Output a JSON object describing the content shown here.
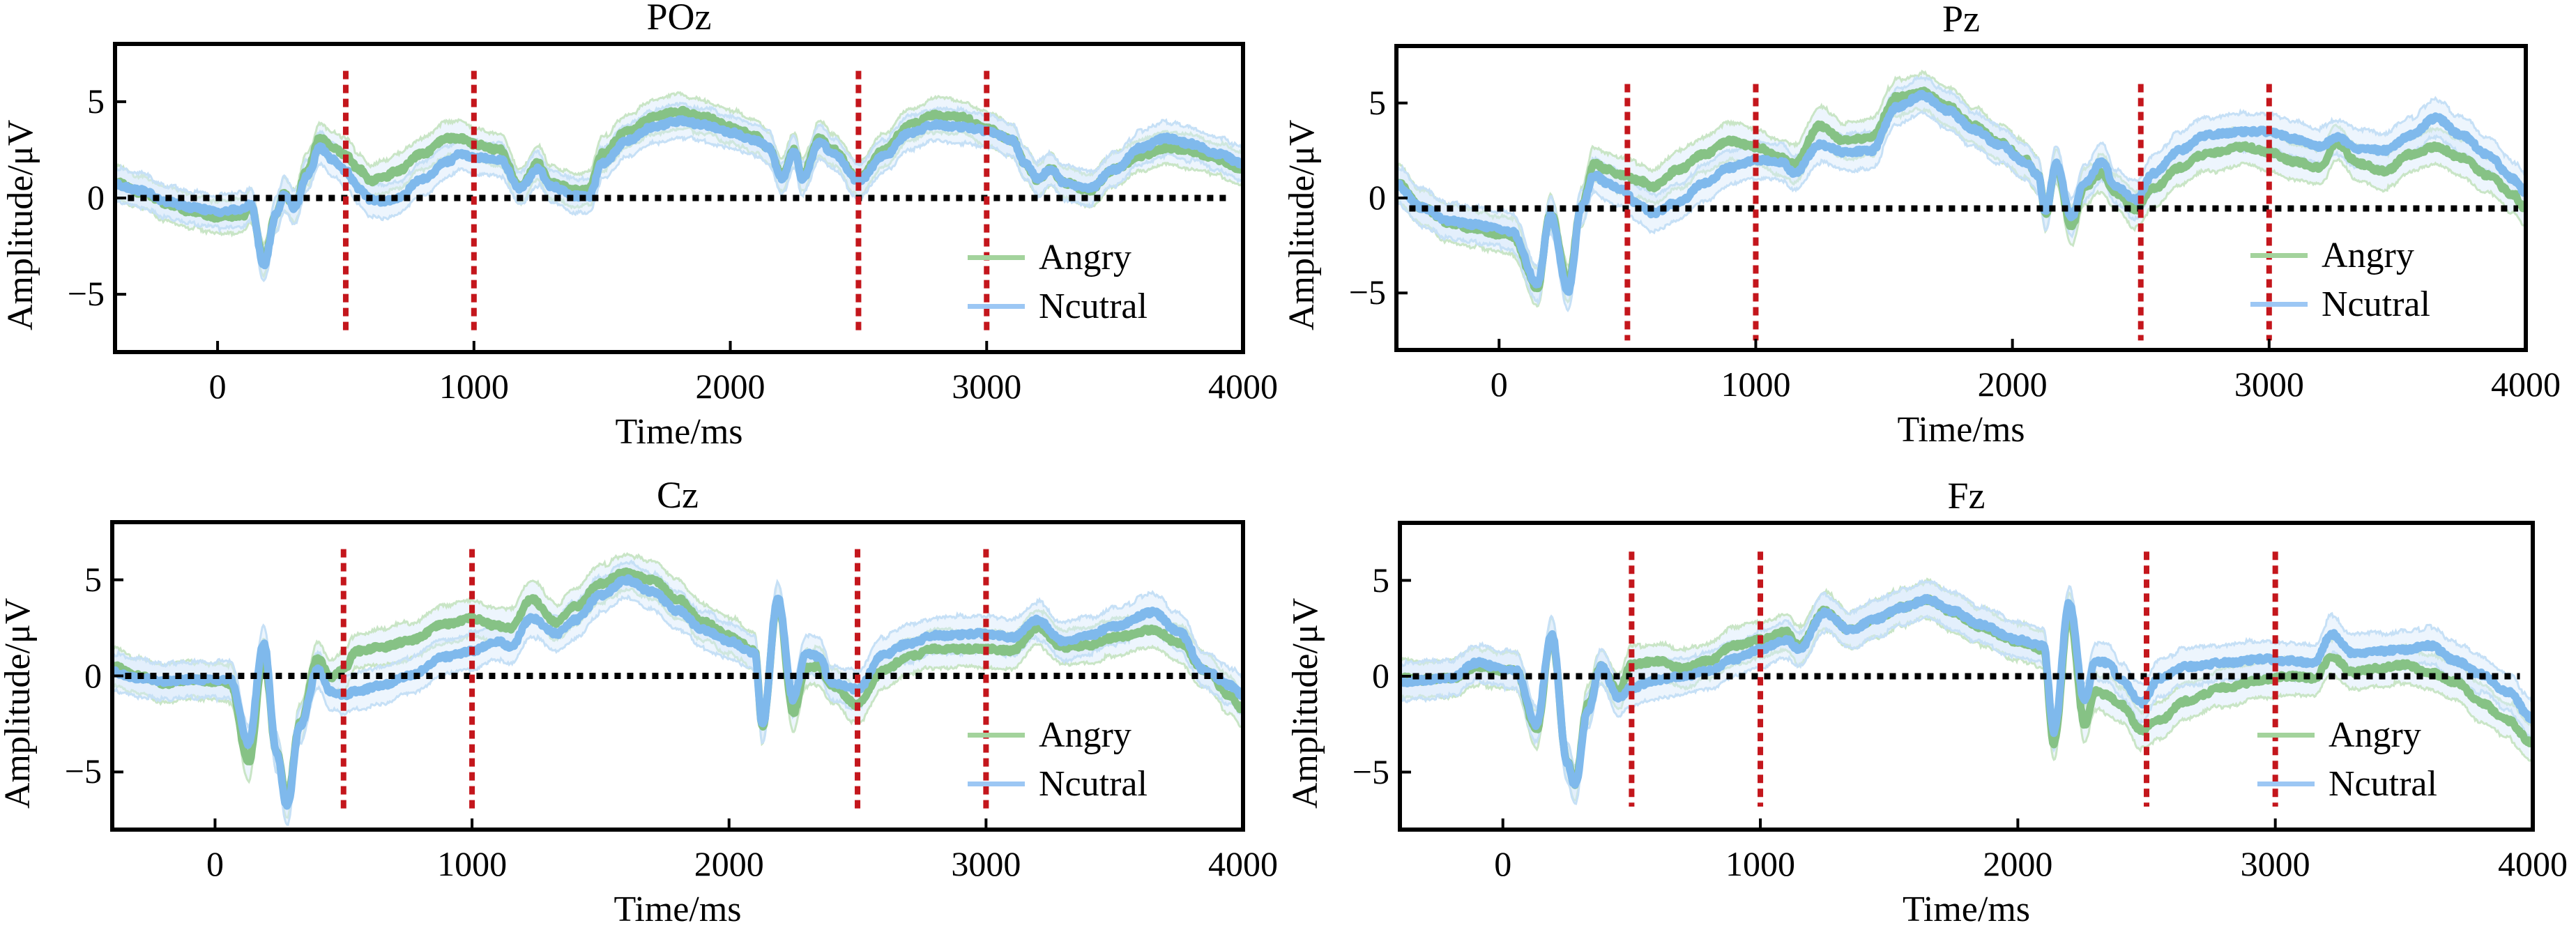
{
  "chart_data": [
    {
      "type": "line",
      "title": "POz",
      "xlabel": "Time/ms",
      "ylabel": "Amplitude/μV",
      "xlim": [
        -400,
        4000
      ],
      "ylim": [
        -8,
        8
      ],
      "xticks": [
        0,
        1000,
        2000,
        3000,
        4000
      ],
      "xtick_labels": [
        "0",
        "1000",
        "2000",
        "3000",
        "4000"
      ],
      "yticks": [
        -5,
        0,
        5
      ],
      "ytick_labels": [
        "−5",
        "0",
        "5"
      ],
      "baseline": 0,
      "baseline_range": [
        -350,
        3940
      ],
      "markers_ms": [
        500,
        1000,
        2500,
        3000
      ],
      "marker_range": [
        -6.9,
        6.6
      ],
      "legend": {
        "position": "bottom-right",
        "entries": [
          "Angry",
          "Ncutral"
        ]
      },
      "x": [
        -400,
        -300,
        -200,
        -100,
        0,
        100,
        130,
        180,
        230,
        260,
        300,
        350,
        400,
        450,
        500,
        550,
        600,
        650,
        700,
        800,
        900,
        950,
        1000,
        1100,
        1180,
        1250,
        1300,
        1400,
        1450,
        1500,
        1600,
        1700,
        1800,
        1900,
        2000,
        2100,
        2150,
        2200,
        2250,
        2280,
        2350,
        2400,
        2500,
        2600,
        2700,
        2800,
        2900,
        3000,
        3100,
        3150,
        3200,
        3250,
        3300,
        3400,
        3500,
        3600,
        3700,
        3800,
        3900,
        4000
      ],
      "series": [
        {
          "name": "Angry",
          "color": "#86c285",
          "band": 0.9,
          "values": [
            0.8,
            0.3,
            -0.3,
            -0.7,
            -1.0,
            -0.9,
            -0.4,
            -3.2,
            -0.8,
            0.2,
            -0.4,
            1.5,
            3.1,
            2.6,
            2.2,
            1.5,
            0.9,
            1.1,
            1.4,
            2.3,
            3.1,
            3.1,
            2.8,
            2.5,
            0.6,
            1.8,
            0.8,
            0.4,
            0.5,
            2.3,
            3.5,
            4.2,
            4.5,
            4.2,
            3.7,
            3.2,
            2.6,
            1.2,
            2.5,
            1.2,
            3.1,
            2.5,
            1.0,
            2.5,
            3.8,
            4.3,
            4.2,
            3.6,
            3.0,
            1.8,
            0.9,
            1.5,
            0.8,
            0.4,
            1.5,
            2.2,
            2.6,
            2.4,
            2.0,
            1.5
          ]
        },
        {
          "name": "Ncutral",
          "color": "#7fb9ec",
          "band": 0.9,
          "values": [
            0.7,
            0.4,
            -0.2,
            -0.5,
            -0.7,
            -0.6,
            -0.3,
            -3.5,
            -0.8,
            0.2,
            -0.5,
            1.2,
            2.6,
            2.0,
            1.4,
            0.5,
            -0.1,
            -0.2,
            0.0,
            1.0,
            1.9,
            2.3,
            2.1,
            2.0,
            0.5,
            1.5,
            0.6,
            0.1,
            0.1,
            1.8,
            3.0,
            3.7,
            4.0,
            3.8,
            3.4,
            3.0,
            2.6,
            1.0,
            2.4,
            1.0,
            2.9,
            2.3,
            0.9,
            2.2,
            3.4,
            3.8,
            3.7,
            3.5,
            3.0,
            1.8,
            1.0,
            1.5,
            0.8,
            0.5,
            1.5,
            2.6,
            3.1,
            2.8,
            2.3,
            1.8
          ]
        }
      ]
    },
    {
      "type": "line",
      "title": "Pz",
      "xlabel": "Time/ms",
      "ylabel": "Amplitude/μV",
      "xlim": [
        -400,
        4000
      ],
      "ylim": [
        -8,
        8
      ],
      "xticks": [
        0,
        1000,
        2000,
        3000,
        4000
      ],
      "xtick_labels": [
        "0",
        "1000",
        "2000",
        "3000",
        "4000"
      ],
      "yticks": [
        -5,
        0,
        5
      ],
      "ytick_labels": [
        "−5",
        "0",
        "5"
      ],
      "baseline": -0.55,
      "baseline_range": [
        -350,
        3970
      ],
      "markers_ms": [
        500,
        1000,
        2500,
        3000
      ],
      "marker_range": [
        -7.5,
        6.0
      ],
      "legend": {
        "position": "bottom-right",
        "entries": [
          "Angry",
          "Ncutral"
        ]
      },
      "x": [
        -400,
        -300,
        -200,
        -100,
        0,
        50,
        150,
        200,
        270,
        320,
        370,
        420,
        470,
        550,
        600,
        700,
        800,
        900,
        1000,
        1100,
        1150,
        1250,
        1350,
        1450,
        1550,
        1650,
        1750,
        1850,
        1950,
        2050,
        2100,
        2130,
        2170,
        2230,
        2280,
        2350,
        2400,
        2480,
        2550,
        2650,
        2750,
        2900,
        3000,
        3100,
        3200,
        3260,
        3350,
        3450,
        3550,
        3650,
        3750,
        3850,
        3950,
        4000
      ],
      "series": [
        {
          "name": "Angry",
          "color": "#86c285",
          "band": 1.0,
          "values": [
            0.8,
            -0.5,
            -1.3,
            -1.6,
            -1.9,
            -2.0,
            -4.7,
            -0.8,
            -4.5,
            -0.5,
            1.8,
            1.5,
            1.2,
            0.9,
            0.6,
            1.5,
            2.3,
            3.0,
            2.7,
            2.1,
            1.8,
            3.8,
            3.0,
            3.2,
            5.3,
            5.6,
            4.8,
            3.8,
            2.9,
            2.0,
            1.2,
            -0.8,
            1.7,
            -1.5,
            0.6,
            1.3,
            0.3,
            -0.6,
            0.5,
            1.6,
            2.3,
            2.7,
            2.4,
            1.9,
            1.6,
            2.9,
            1.8,
            1.4,
            2.3,
            2.7,
            2.1,
            1.2,
            0.2,
            -0.6
          ]
        },
        {
          "name": "Ncutral",
          "color": "#7fb9ec",
          "band": 1.0,
          "values": [
            0.7,
            -0.5,
            -1.2,
            -1.4,
            -1.6,
            -1.8,
            -4.5,
            -0.9,
            -4.9,
            -0.5,
            1.2,
            0.8,
            0.5,
            -0.4,
            -0.8,
            -0.2,
            0.8,
            1.6,
            2.0,
            1.9,
            1.3,
            2.8,
            2.4,
            2.5,
            4.8,
            5.4,
            4.6,
            3.6,
            2.8,
            1.9,
            1.2,
            -0.8,
            1.8,
            -1.0,
            0.8,
            1.9,
            0.6,
            -0.1,
            1.3,
            2.5,
            3.3,
            3.5,
            3.5,
            3.1,
            2.7,
            3.2,
            2.6,
            2.5,
            3.3,
            4.2,
            3.3,
            2.3,
            1.0,
            0.3
          ]
        }
      ]
    },
    {
      "type": "line",
      "title": "Cz",
      "xlabel": "Time/ms",
      "ylabel": "Amplitude/μV",
      "xlim": [
        -400,
        4000
      ],
      "ylim": [
        -8,
        8
      ],
      "xticks": [
        0,
        1000,
        2000,
        3000,
        4000
      ],
      "xtick_labels": [
        "0",
        "1000",
        "2000",
        "3000",
        "4000"
      ],
      "yticks": [
        -5,
        0,
        5
      ],
      "ytick_labels": [
        "−5",
        "0",
        "5"
      ],
      "baseline": 0,
      "baseline_range": [
        -350,
        3930
      ],
      "markers_ms": [
        500,
        1000,
        2500,
        3000
      ],
      "marker_range": [
        -7.0,
        6.6
      ],
      "legend": {
        "position": "bottom-right",
        "entries": [
          "Angry",
          "Ncutral"
        ]
      },
      "x": [
        -400,
        -300,
        -200,
        -100,
        0,
        60,
        130,
        190,
        240,
        280,
        330,
        400,
        450,
        500,
        550,
        650,
        750,
        900,
        1000,
        1100,
        1150,
        1230,
        1330,
        1400,
        1500,
        1600,
        1700,
        1800,
        1900,
        2000,
        2100,
        2130,
        2190,
        2250,
        2300,
        2350,
        2400,
        2500,
        2600,
        2700,
        2800,
        3000,
        3100,
        3200,
        3300,
        3400,
        3500,
        3650,
        3750,
        3850,
        3950,
        4000
      ],
      "series": [
        {
          "name": "Angry",
          "color": "#86c285",
          "band": 1.0,
          "values": [
            0.5,
            0.0,
            -0.4,
            -0.2,
            -0.3,
            -0.4,
            -4.5,
            1.0,
            -4.0,
            -6.5,
            -2.5,
            0.9,
            -0.1,
            0.3,
            1.3,
            1.5,
            1.8,
            2.7,
            3.0,
            2.6,
            2.5,
            4.0,
            2.8,
            3.6,
            4.8,
            5.4,
            5.0,
            4.0,
            2.8,
            2.1,
            1.3,
            -2.6,
            3.9,
            -1.9,
            0.4,
            0.5,
            -0.5,
            -1.5,
            0.3,
            1.0,
            1.4,
            1.4,
            1.3,
            2.5,
            1.5,
            1.6,
            2.0,
            2.4,
            1.7,
            0.3,
            -1.0,
            -1.8
          ]
        },
        {
          "name": "Ncutral",
          "color": "#7fb9ec",
          "band": 1.0,
          "values": [
            0.2,
            -0.1,
            -0.3,
            -0.2,
            -0.2,
            -0.2,
            -3.5,
            1.7,
            -4.0,
            -6.8,
            -2.6,
            0.3,
            -0.8,
            -1.0,
            -0.8,
            -0.5,
            0.0,
            1.0,
            1.3,
            1.8,
            1.5,
            3.0,
            2.2,
            2.9,
            4.2,
            5.0,
            4.4,
            3.4,
            2.4,
            1.8,
            1.2,
            -2.6,
            4.0,
            -1.2,
            1.2,
            1.0,
            -0.4,
            -0.7,
            1.1,
            1.7,
            2.1,
            2.2,
            2.0,
            2.9,
            1.8,
            2.1,
            2.6,
            3.3,
            2.3,
            0.3,
            -0.5,
            -1.0
          ]
        }
      ]
    },
    {
      "type": "line",
      "title": "Fz",
      "xlabel": "Time/ms",
      "ylabel": "Amplitude/μV",
      "xlim": [
        -400,
        4000
      ],
      "ylim": [
        -8,
        8
      ],
      "xticks": [
        0,
        1000,
        2000,
        3000,
        4000
      ],
      "xtick_labels": [
        "0",
        "1000",
        "2000",
        "3000",
        "4000"
      ],
      "yticks": [
        -5,
        0,
        5
      ],
      "ytick_labels": [
        "−5",
        "0",
        "5"
      ],
      "baseline": 0,
      "baseline_range": [
        -350,
        3950
      ],
      "markers_ms": [
        500,
        1000,
        2500,
        3000
      ],
      "marker_range": [
        -6.8,
        6.5
      ],
      "legend": {
        "position": "bottom-right",
        "entries": [
          "Angry",
          "Ncutral"
        ]
      },
      "x": [
        -400,
        -300,
        -200,
        -100,
        0,
        50,
        130,
        190,
        250,
        280,
        330,
        380,
        450,
        500,
        600,
        700,
        800,
        900,
        1000,
        1100,
        1150,
        1250,
        1350,
        1450,
        1550,
        1650,
        1750,
        1850,
        2000,
        2100,
        2140,
        2200,
        2260,
        2300,
        2350,
        2400,
        2480,
        2550,
        2650,
        2800,
        2950,
        3050,
        3150,
        3220,
        3300,
        3400,
        3500,
        3600,
        3700,
        3800,
        3900,
        4000
      ],
      "series": [
        {
          "name": "Angry",
          "color": "#86c285",
          "band": 1.0,
          "values": [
            -0.1,
            -0.2,
            -0.1,
            0.5,
            0.3,
            0.3,
            -2.8,
            2.1,
            -4.5,
            -5.6,
            -1.5,
            0.5,
            -0.8,
            0.6,
            0.8,
            0.4,
            0.8,
            1.6,
            1.9,
            2.3,
            1.6,
            3.4,
            2.4,
            3.0,
            3.6,
            4.0,
            3.3,
            2.6,
            1.8,
            1.4,
            -3.5,
            3.4,
            -2.5,
            -0.8,
            -1.0,
            -1.5,
            -2.8,
            -2.3,
            -1.3,
            -0.6,
            -0.2,
            0.0,
            -0.1,
            1.0,
            0.2,
            0.4,
            0.6,
            0.2,
            -0.3,
            -1.4,
            -2.3,
            -3.5
          ]
        },
        {
          "name": "Ncutral",
          "color": "#7fb9ec",
          "band": 1.0,
          "values": [
            -0.3,
            -0.2,
            -0.1,
            0.7,
            0.4,
            0.3,
            -2.5,
            2.2,
            -4.5,
            -5.7,
            -1.8,
            0.5,
            -1.1,
            -0.6,
            -0.2,
            0.0,
            0.3,
            0.9,
            1.4,
            1.9,
            1.4,
            3.3,
            2.4,
            3.0,
            3.6,
            4.0,
            3.4,
            2.7,
            1.9,
            1.6,
            -2.9,
            3.8,
            -1.3,
            0.8,
            0.7,
            -0.2,
            -1.4,
            -0.1,
            0.5,
            0.7,
            0.9,
            0.8,
            0.7,
            2.2,
            1.2,
            1.3,
            1.4,
            1.6,
            0.8,
            0.1,
            -0.8,
            -2.2
          ]
        }
      ]
    }
  ]
}
